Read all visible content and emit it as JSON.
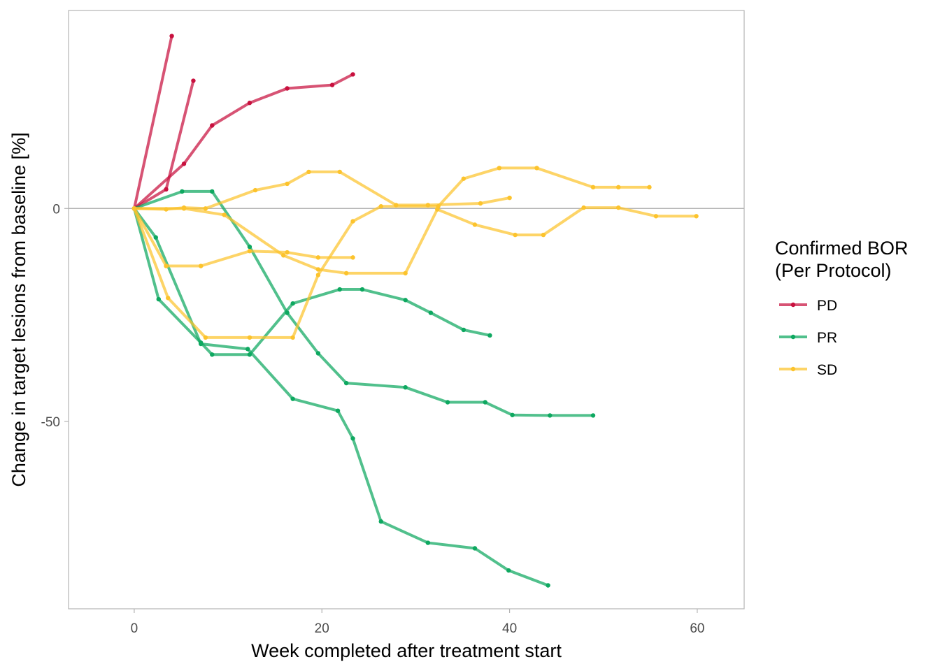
{
  "chart_data": {
    "type": "line",
    "title": "",
    "xlabel": "Week completed after treatment start",
    "ylabel": "Change in target lesions from baseline [%]",
    "xlim": [
      -7,
      65
    ],
    "ylim": [
      -94,
      46.5
    ],
    "x_ticks": [
      0,
      20,
      40,
      60
    ],
    "y_ticks": [
      -50,
      0
    ],
    "x_tick_labels": [
      "0",
      "20",
      "40",
      "60"
    ],
    "y_tick_labels": [
      "-50",
      "0"
    ],
    "reference_line_y": 0,
    "grid": false,
    "legend": {
      "title_lines": [
        "Confirmed BOR",
        "(Per Protocol)"
      ],
      "placement": "right",
      "entries": [
        {
          "label": "PD",
          "color": "#c8103e"
        },
        {
          "label": "PR",
          "color": "#0ea860"
        },
        {
          "label": "SD",
          "color": "#fcc32c"
        }
      ]
    },
    "series": [
      {
        "group": "PD",
        "points": [
          [
            0,
            0
          ],
          [
            4,
            40.5
          ]
        ]
      },
      {
        "group": "PD",
        "points": [
          [
            0,
            0
          ],
          [
            3.4,
            4.5
          ],
          [
            6.3,
            30
          ]
        ]
      },
      {
        "group": "PD",
        "points": [
          [
            0,
            0
          ],
          [
            5.3,
            10.5
          ],
          [
            8.3,
            19.5
          ],
          [
            12.3,
            24.8
          ],
          [
            16.3,
            28.2
          ],
          [
            21.1,
            29
          ],
          [
            23.3,
            31.5
          ]
        ]
      },
      {
        "group": "PR",
        "points": [
          [
            0,
            0
          ],
          [
            5.1,
            4
          ],
          [
            8.3,
            4
          ],
          [
            12.3,
            -9
          ],
          [
            16.3,
            -24.5
          ],
          [
            19.6,
            -34
          ],
          [
            22.6,
            -41
          ],
          [
            28.9,
            -42
          ],
          [
            33.4,
            -45.5
          ],
          [
            37.4,
            -45.5
          ],
          [
            40.3,
            -48.5
          ],
          [
            44.3,
            -48.6
          ],
          [
            48.9,
            -48.6
          ]
        ]
      },
      {
        "group": "PR",
        "points": [
          [
            0,
            0
          ],
          [
            2.3,
            -6.8
          ],
          [
            7.1,
            -31.8
          ],
          [
            12.1,
            -33
          ],
          [
            16.9,
            -44.7
          ],
          [
            21.7,
            -47.5
          ],
          [
            23.3,
            -54
          ],
          [
            26.3,
            -73.5
          ],
          [
            31.3,
            -78.5
          ],
          [
            36.3,
            -79.8
          ],
          [
            39.9,
            -85
          ],
          [
            44.1,
            -88.5
          ]
        ]
      },
      {
        "group": "PR",
        "points": [
          [
            0,
            0
          ],
          [
            2.6,
            -21.3
          ],
          [
            7.1,
            -31.5
          ],
          [
            8.3,
            -34.3
          ],
          [
            12.3,
            -34.3
          ],
          [
            16.9,
            -22.3
          ],
          [
            21.9,
            -19
          ],
          [
            24.3,
            -19
          ],
          [
            28.9,
            -21.5
          ],
          [
            31.6,
            -24.5
          ],
          [
            35.1,
            -28.5
          ],
          [
            37.9,
            -29.8
          ]
        ]
      },
      {
        "group": "SD",
        "points": [
          [
            0,
            0
          ],
          [
            3.4,
            -13.5
          ],
          [
            7.1,
            -13.5
          ],
          [
            12.3,
            -10
          ],
          [
            16.3,
            -10.3
          ],
          [
            19.6,
            -11.5
          ],
          [
            23.3,
            -11.5
          ]
        ]
      },
      {
        "group": "SD",
        "points": [
          [
            0,
            0
          ],
          [
            3.6,
            -21
          ],
          [
            7.6,
            -30.3
          ],
          [
            12.3,
            -30.3
          ],
          [
            16.9,
            -30.3
          ],
          [
            19.6,
            -15.6
          ],
          [
            23.3,
            -3
          ],
          [
            26.3,
            0.5
          ],
          [
            32.4,
            0.5
          ],
          [
            35.1,
            7
          ],
          [
            38.9,
            9.5
          ],
          [
            42.9,
            9.5
          ],
          [
            48.9,
            5
          ],
          [
            51.6,
            5
          ],
          [
            54.9,
            5
          ]
        ]
      },
      {
        "group": "SD",
        "points": [
          [
            0,
            0
          ],
          [
            3.4,
            -0.2
          ],
          [
            5.3,
            0.2
          ],
          [
            7.6,
            0
          ],
          [
            12.9,
            4.3
          ],
          [
            16.3,
            5.8
          ],
          [
            18.6,
            8.6
          ],
          [
            21.9,
            8.6
          ],
          [
            27.9,
            0.8
          ],
          [
            31.3,
            0.8
          ],
          [
            36.9,
            1.2
          ],
          [
            40.0,
            2.5
          ]
        ]
      },
      {
        "group": "SD",
        "points": [
          [
            0,
            0
          ],
          [
            5.3,
            0
          ],
          [
            9.6,
            -1.5
          ],
          [
            15.9,
            -11
          ],
          [
            19.6,
            -14.3
          ],
          [
            22.6,
            -15.2
          ],
          [
            28.9,
            -15.2
          ],
          [
            32.3,
            -0.2
          ],
          [
            36.3,
            -3.8
          ],
          [
            40.6,
            -6.2
          ],
          [
            43.6,
            -6.2
          ],
          [
            47.9,
            0.2
          ],
          [
            51.6,
            0.2
          ],
          [
            55.6,
            -1.8
          ],
          [
            59.9,
            -1.8
          ]
        ]
      }
    ]
  }
}
